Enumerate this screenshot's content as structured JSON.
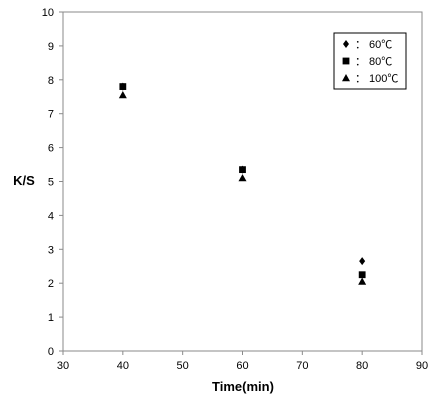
{
  "chart_data": {
    "type": "scatter",
    "xlabel": "Time(min)",
    "ylabel": "K/S",
    "xlim": [
      30,
      90
    ],
    "ylim": [
      0,
      10
    ],
    "xticks": [
      30,
      40,
      50,
      60,
      70,
      80,
      90
    ],
    "yticks": [
      0,
      1,
      2,
      3,
      4,
      5,
      6,
      7,
      8,
      9,
      10
    ],
    "grid": false,
    "legend_position": "top-right",
    "series": [
      {
        "name": "60℃",
        "marker": "diamond",
        "color": "#000000",
        "x": [
          40,
          60,
          80
        ],
        "y": [
          7.8,
          5.35,
          2.65
        ]
      },
      {
        "name": "80℃",
        "marker": "square",
        "color": "#000000",
        "x": [
          40,
          60,
          80
        ],
        "y": [
          7.8,
          5.35,
          2.25
        ]
      },
      {
        "name": "100℃",
        "marker": "triangle",
        "color": "#000000",
        "x": [
          40,
          60,
          80
        ],
        "y": [
          7.55,
          5.1,
          2.05
        ]
      }
    ]
  }
}
